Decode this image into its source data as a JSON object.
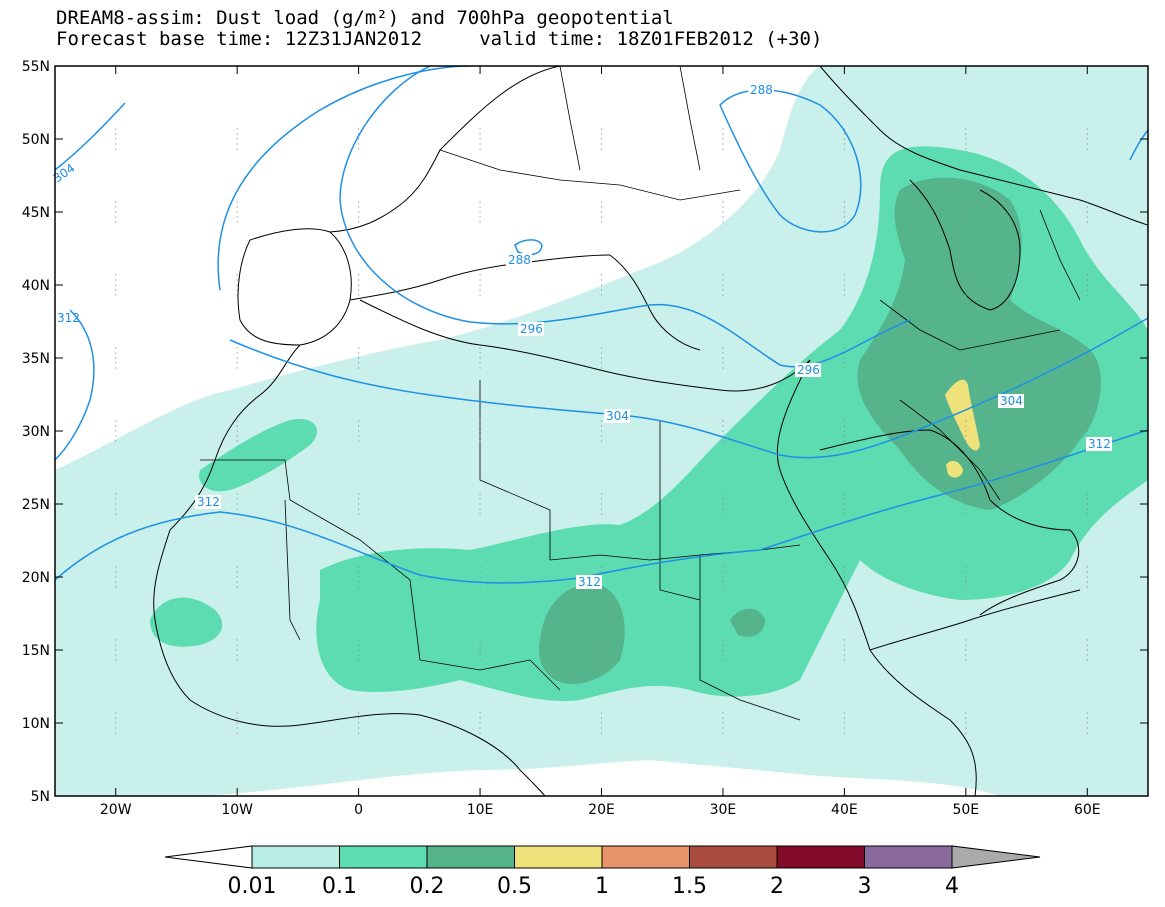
{
  "title": {
    "line1": "DREAM8-assim: Dust load (g/m²) and 700hPa geopotential",
    "line2": "Forecast base time: 12Z31JAN2012     valid time: 18Z01FEB2012 (+30)"
  },
  "axes": {
    "lat_labels": [
      "55N",
      "50N",
      "45N",
      "40N",
      "35N",
      "30N",
      "25N",
      "20N",
      "15N",
      "10N",
      "5N"
    ],
    "lon_labels": [
      "20W",
      "10W",
      "0",
      "10E",
      "20E",
      "30E",
      "40E",
      "50E",
      "60E"
    ],
    "lon_range": [
      -25,
      65
    ],
    "lat_range": [
      5,
      55
    ]
  },
  "contours": {
    "color": "#1e90e6",
    "labels": [
      "288",
      "288",
      "296",
      "296",
      "304",
      "304",
      "304",
      "312",
      "312",
      "312",
      "312"
    ]
  },
  "colorbar": {
    "labels": [
      "0.01",
      "0.1",
      "0.2",
      "0.5",
      "1",
      "1.5",
      "2",
      "3",
      "4"
    ],
    "colors": [
      "#ffffff",
      "#b8ede6",
      "#5ddcb2",
      "#56b48d",
      "#f0e27a",
      "#e8936a",
      "#a84b3c",
      "#820a2a",
      "#8a6a9e",
      "#aaaaaa"
    ]
  },
  "dust_colors": {
    "level1": "#c9f0ea",
    "level2": "#5ddcb2",
    "level3": "#56b48d",
    "level4": "#f0e27a"
  }
}
